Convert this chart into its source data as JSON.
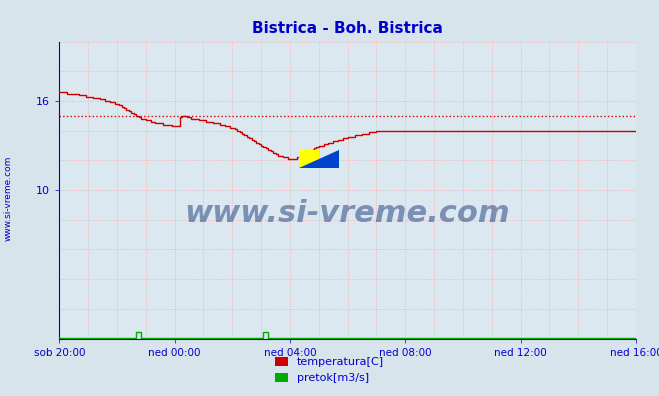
{
  "title": "Bistrica - Boh. Bistrica",
  "title_color": "#0000cc",
  "bg_color": "#d8e4ec",
  "plot_bg_color": "#dce8f0",
  "grid_color": "#ff9999",
  "axis_color": "#0000cc",
  "ylabel_text": "www.si-vreme.com",
  "ylabel_color": "#0000cc",
  "ylim": [
    0,
    20
  ],
  "ytick_positions": [
    10,
    16
  ],
  "ytick_labels": [
    "10",
    "16"
  ],
  "xtick_positions": [
    0,
    4,
    8,
    12,
    16,
    20
  ],
  "xtick_labels": [
    "sob 20:00",
    "ned 00:00",
    "ned 04:00",
    "ned 08:00",
    "ned 12:00",
    "ned 16:00"
  ],
  "temp_color": "#cc0000",
  "pretok_color": "#00aa00",
  "avg_line_color": "#cc0000",
  "avg_line_value": 15.0,
  "legend_items": [
    {
      "label": "temperatura[C]",
      "color": "#cc0000"
    },
    {
      "label": "pretok[m3/s]",
      "color": "#00aa00"
    }
  ],
  "temp_data": [
    [
      0.0,
      16.6
    ],
    [
      0.08,
      16.6
    ],
    [
      0.17,
      16.6
    ],
    [
      0.25,
      16.5
    ],
    [
      0.33,
      16.5
    ],
    [
      0.42,
      16.5
    ],
    [
      0.5,
      16.5
    ],
    [
      0.58,
      16.5
    ],
    [
      0.67,
      16.4
    ],
    [
      0.75,
      16.4
    ],
    [
      0.83,
      16.4
    ],
    [
      0.92,
      16.3
    ],
    [
      1.0,
      16.3
    ],
    [
      1.08,
      16.3
    ],
    [
      1.17,
      16.2
    ],
    [
      1.25,
      16.2
    ],
    [
      1.33,
      16.2
    ],
    [
      1.42,
      16.1
    ],
    [
      1.5,
      16.1
    ],
    [
      1.58,
      16.0
    ],
    [
      1.67,
      16.0
    ],
    [
      1.75,
      15.9
    ],
    [
      1.83,
      15.9
    ],
    [
      1.92,
      15.8
    ],
    [
      2.0,
      15.8
    ],
    [
      2.08,
      15.7
    ],
    [
      2.17,
      15.6
    ],
    [
      2.25,
      15.5
    ],
    [
      2.33,
      15.4
    ],
    [
      2.42,
      15.3
    ],
    [
      2.5,
      15.2
    ],
    [
      2.58,
      15.1
    ],
    [
      2.67,
      15.0
    ],
    [
      2.75,
      14.9
    ],
    [
      2.83,
      14.8
    ],
    [
      2.92,
      14.8
    ],
    [
      3.0,
      14.7
    ],
    [
      3.08,
      14.7
    ],
    [
      3.17,
      14.6
    ],
    [
      3.25,
      14.6
    ],
    [
      3.33,
      14.5
    ],
    [
      3.42,
      14.5
    ],
    [
      3.5,
      14.5
    ],
    [
      3.58,
      14.4
    ],
    [
      3.67,
      14.4
    ],
    [
      3.75,
      14.4
    ],
    [
      3.83,
      14.4
    ],
    [
      3.92,
      14.3
    ],
    [
      4.0,
      14.3
    ],
    [
      4.08,
      14.3
    ],
    [
      4.17,
      14.9
    ],
    [
      4.25,
      15.0
    ],
    [
      4.33,
      15.0
    ],
    [
      4.42,
      14.9
    ],
    [
      4.5,
      14.9
    ],
    [
      4.58,
      14.8
    ],
    [
      4.67,
      14.8
    ],
    [
      4.75,
      14.8
    ],
    [
      4.83,
      14.7
    ],
    [
      4.92,
      14.7
    ],
    [
      5.0,
      14.7
    ],
    [
      5.08,
      14.6
    ],
    [
      5.17,
      14.6
    ],
    [
      5.25,
      14.6
    ],
    [
      5.33,
      14.5
    ],
    [
      5.42,
      14.5
    ],
    [
      5.5,
      14.5
    ],
    [
      5.58,
      14.4
    ],
    [
      5.67,
      14.4
    ],
    [
      5.75,
      14.3
    ],
    [
      5.83,
      14.3
    ],
    [
      5.92,
      14.2
    ],
    [
      6.0,
      14.2
    ],
    [
      6.08,
      14.1
    ],
    [
      6.17,
      14.0
    ],
    [
      6.25,
      13.9
    ],
    [
      6.33,
      13.8
    ],
    [
      6.42,
      13.7
    ],
    [
      6.5,
      13.6
    ],
    [
      6.58,
      13.5
    ],
    [
      6.67,
      13.4
    ],
    [
      6.75,
      13.3
    ],
    [
      6.83,
      13.2
    ],
    [
      6.92,
      13.1
    ],
    [
      7.0,
      13.0
    ],
    [
      7.08,
      12.9
    ],
    [
      7.17,
      12.8
    ],
    [
      7.25,
      12.7
    ],
    [
      7.33,
      12.6
    ],
    [
      7.42,
      12.5
    ],
    [
      7.5,
      12.4
    ],
    [
      7.58,
      12.3
    ],
    [
      7.67,
      12.3
    ],
    [
      7.75,
      12.2
    ],
    [
      7.83,
      12.2
    ],
    [
      7.92,
      12.1
    ],
    [
      8.0,
      12.1
    ],
    [
      8.08,
      12.1
    ],
    [
      8.17,
      12.1
    ],
    [
      8.25,
      12.2
    ],
    [
      8.33,
      12.2
    ],
    [
      8.42,
      12.3
    ],
    [
      8.5,
      12.4
    ],
    [
      8.58,
      12.5
    ],
    [
      8.67,
      12.6
    ],
    [
      8.75,
      12.7
    ],
    [
      8.83,
      12.8
    ],
    [
      8.92,
      12.9
    ],
    [
      9.0,
      13.0
    ],
    [
      9.17,
      13.1
    ],
    [
      9.33,
      13.2
    ],
    [
      9.5,
      13.3
    ],
    [
      9.67,
      13.4
    ],
    [
      9.83,
      13.5
    ],
    [
      10.0,
      13.6
    ],
    [
      10.25,
      13.7
    ],
    [
      10.5,
      13.8
    ],
    [
      10.75,
      13.9
    ],
    [
      11.0,
      14.0
    ],
    [
      11.25,
      14.0
    ],
    [
      11.5,
      14.0
    ],
    [
      11.75,
      14.0
    ],
    [
      12.0,
      14.0
    ],
    [
      12.5,
      14.0
    ],
    [
      13.0,
      14.0
    ],
    [
      13.5,
      14.0
    ],
    [
      14.0,
      14.0
    ],
    [
      14.5,
      14.0
    ],
    [
      15.0,
      14.0
    ],
    [
      15.5,
      14.0
    ],
    [
      16.0,
      14.0
    ],
    [
      16.5,
      14.0
    ],
    [
      17.0,
      14.0
    ],
    [
      17.5,
      14.0
    ],
    [
      18.0,
      14.0
    ],
    [
      18.5,
      14.0
    ],
    [
      19.0,
      14.0
    ],
    [
      19.5,
      14.0
    ],
    [
      20.0,
      14.0
    ]
  ],
  "pretok_data": [
    [
      0.0,
      0.02
    ],
    [
      2.0,
      0.02
    ],
    [
      2.58,
      0.02
    ],
    [
      2.67,
      0.45
    ],
    [
      2.75,
      0.45
    ],
    [
      2.83,
      0.02
    ],
    [
      4.0,
      0.02
    ],
    [
      6.0,
      0.02
    ],
    [
      7.0,
      0.02
    ],
    [
      7.08,
      0.45
    ],
    [
      7.17,
      0.45
    ],
    [
      7.25,
      0.02
    ],
    [
      9.0,
      0.02
    ],
    [
      12.0,
      0.02
    ],
    [
      16.0,
      0.02
    ],
    [
      20.0,
      0.02
    ]
  ],
  "watermark_text": "www.si-vreme.com",
  "watermark_color": "#1a3a7a",
  "watermark_alpha": 0.5
}
